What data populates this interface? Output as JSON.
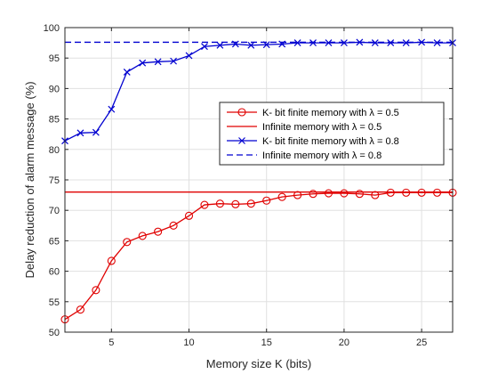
{
  "chart_data": {
    "type": "line",
    "xlabel": "Memory size K (bits)",
    "ylabel": "Delay reduction of alarm message (%)",
    "xlim": [
      2,
      27
    ],
    "ylim": [
      50,
      100
    ],
    "xticks": [
      5,
      10,
      15,
      20,
      25
    ],
    "yticks": [
      50,
      55,
      60,
      65,
      70,
      75,
      80,
      85,
      90,
      95,
      100
    ],
    "grid": true,
    "legend_position": "right-middle",
    "series": [
      {
        "name": "K- bit finite memory with λ = 0.5",
        "color": "#e00000",
        "line": "solid",
        "marker": "circle",
        "x": [
          2,
          3,
          4,
          5,
          6,
          7,
          8,
          9,
          10,
          11,
          12,
          13,
          14,
          15,
          16,
          17,
          18,
          19,
          20,
          21,
          22,
          23,
          24,
          25,
          26,
          27
        ],
        "y": [
          52.1,
          53.7,
          56.9,
          61.7,
          64.8,
          65.8,
          66.5,
          67.5,
          69.1,
          70.9,
          71.1,
          71.0,
          71.1,
          71.6,
          72.2,
          72.5,
          72.7,
          72.8,
          72.8,
          72.7,
          72.5,
          72.9,
          72.9,
          72.9,
          72.9,
          72.9
        ]
      },
      {
        "name": "Infinite memory with λ = 0.5",
        "color": "#e00000",
        "line": "solid",
        "marker": "none",
        "x": [
          2,
          27
        ],
        "y": [
          73.0,
          73.0
        ]
      },
      {
        "name": "K- bit finite memory with λ = 0.8",
        "color": "#0000d0",
        "line": "solid",
        "marker": "x",
        "x": [
          2,
          3,
          4,
          5,
          6,
          7,
          8,
          9,
          10,
          11,
          12,
          13,
          14,
          15,
          16,
          17,
          18,
          19,
          20,
          21,
          22,
          23,
          24,
          25,
          26,
          27
        ],
        "y": [
          81.4,
          82.7,
          82.8,
          86.6,
          92.7,
          94.2,
          94.4,
          94.5,
          95.4,
          96.9,
          97.1,
          97.3,
          97.1,
          97.2,
          97.3,
          97.5,
          97.5,
          97.5,
          97.5,
          97.6,
          97.5,
          97.5,
          97.5,
          97.6,
          97.5,
          97.5
        ]
      },
      {
        "name": "Infinite memory with λ = 0.8",
        "color": "#0000d0",
        "line": "dashed",
        "marker": "none",
        "x": [
          2,
          27
        ],
        "y": [
          97.6,
          97.6
        ]
      }
    ]
  }
}
